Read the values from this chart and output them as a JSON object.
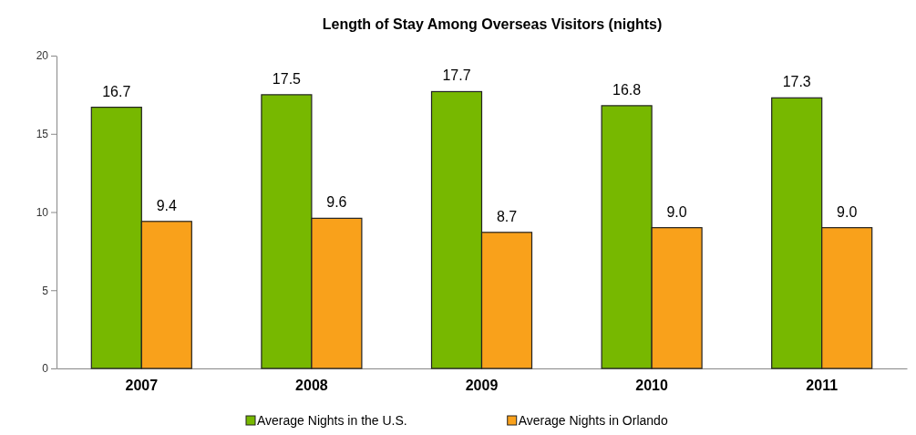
{
  "chart_data": {
    "type": "bar",
    "title": "Length of Stay Among Overseas Visitors (nights)",
    "categories": [
      "2007",
      "2008",
      "2009",
      "2010",
      "2011"
    ],
    "series": [
      {
        "name": "Average Nights in the U.S.",
        "color": "#77b800",
        "values": [
          16.7,
          17.5,
          17.7,
          16.8,
          17.3
        ]
      },
      {
        "name": "Average Nights in Orlando",
        "color": "#f9a11b",
        "values": [
          9.4,
          9.6,
          8.7,
          9.0,
          9.0
        ]
      }
    ],
    "value_labels": [
      [
        "16.7",
        "17.5",
        "17.7",
        "16.8",
        "17.3"
      ],
      [
        "9.4",
        "9.6",
        "8.7",
        "9.0",
        "9.0"
      ]
    ],
    "ylim": [
      0,
      20
    ],
    "yticks": [
      0,
      5,
      10,
      15,
      20
    ],
    "grid": false,
    "legend": "bottom"
  }
}
